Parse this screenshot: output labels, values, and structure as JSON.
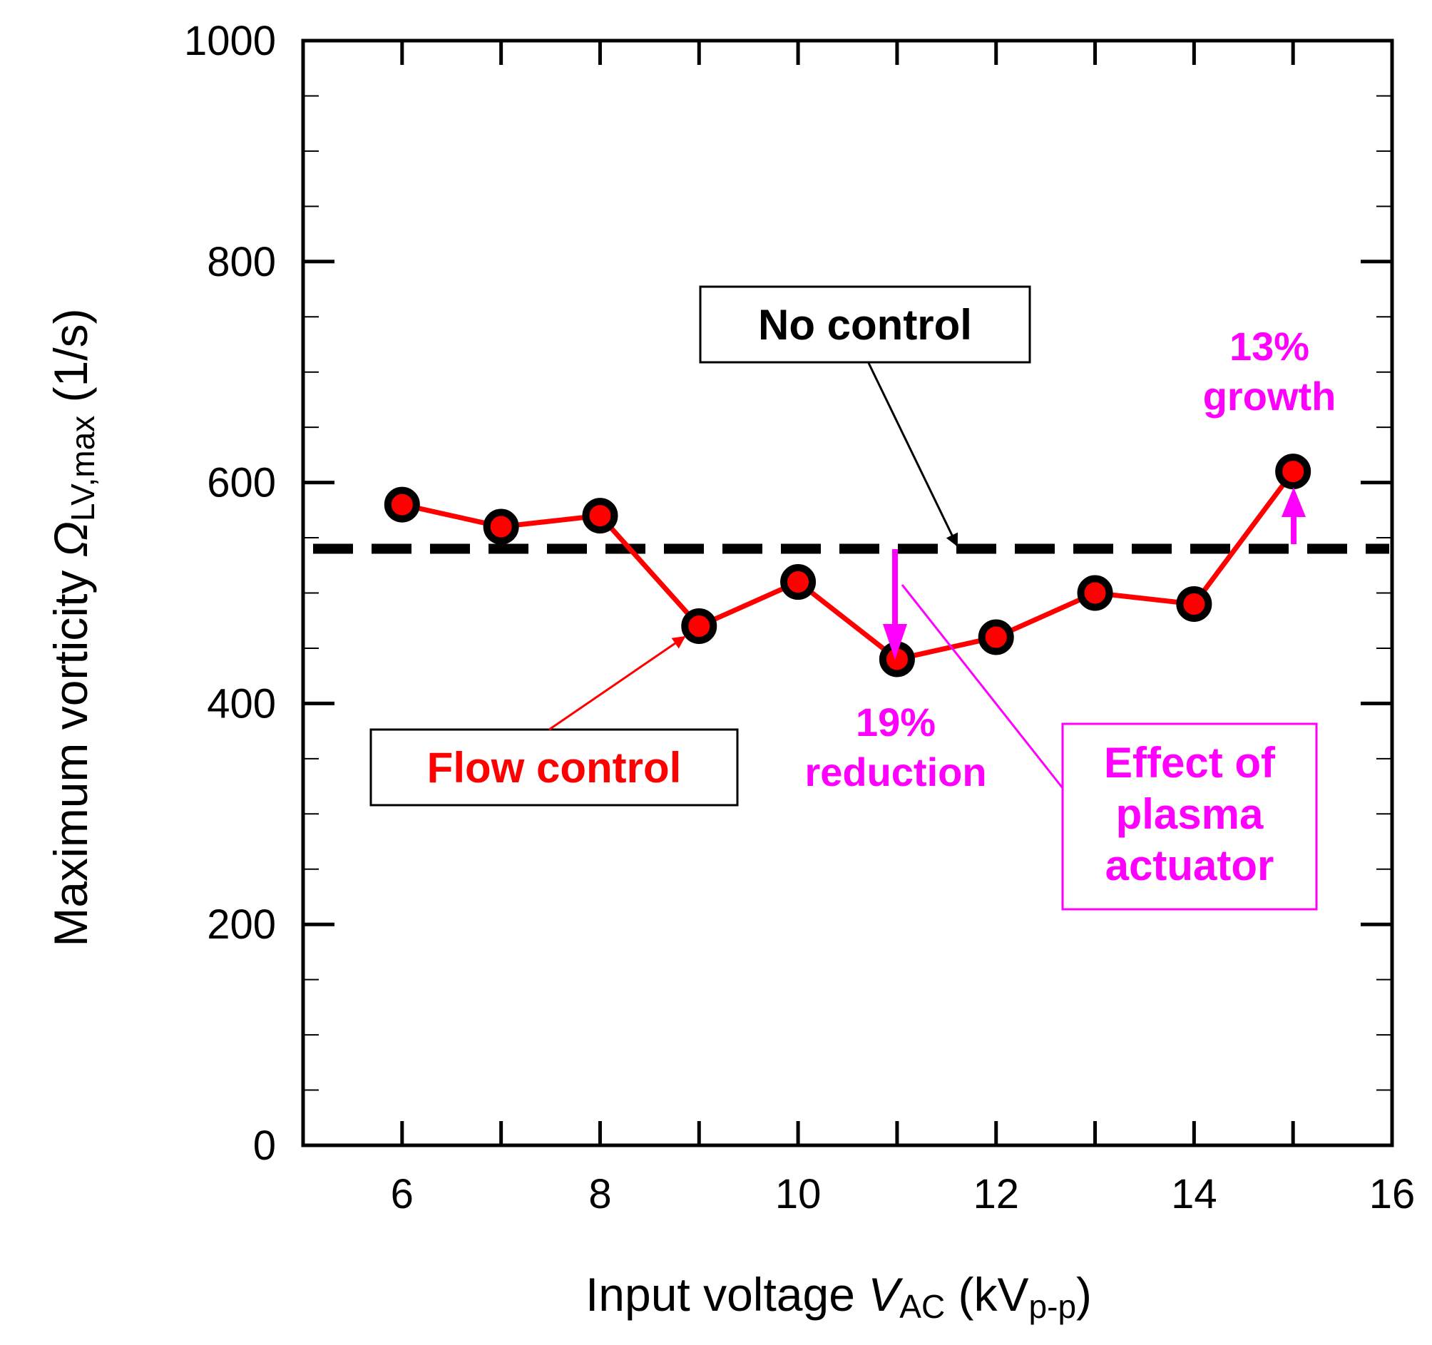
{
  "chart_data": {
    "type": "line",
    "x": [
      6,
      7,
      8,
      9,
      10,
      11,
      12,
      13,
      14,
      15
    ],
    "series": [
      {
        "name": "Flow control",
        "values": [
          580,
          560,
          570,
          470,
          510,
          440,
          460,
          500,
          490,
          610
        ],
        "color": "#ff0000"
      },
      {
        "name": "No control",
        "value": 540,
        "style": "dashed",
        "color": "#000000"
      }
    ],
    "xlim": [
      5,
      16
    ],
    "ylim": [
      0,
      1000
    ],
    "xticks": [
      6,
      8,
      10,
      12,
      14,
      16
    ],
    "yticks": [
      0,
      200,
      400,
      600,
      800,
      1000
    ],
    "xlabel": {
      "prefix": "Input voltage ",
      "var": "V",
      "sub": "AC",
      "post": " (kV",
      "unit_sub": "p-p",
      "close": ")"
    },
    "ylabel": {
      "prefix": "Maximum vorticity ",
      "var": "Ω",
      "sub": "LV,max",
      "post": " (1/s)"
    },
    "annotations": {
      "no_control_label": "No control",
      "flow_control_label": "Flow control",
      "reduction_pct": "19%",
      "reduction_word": "reduction",
      "growth_pct": "13%",
      "growth_word": "growth",
      "effect_lines": [
        "Effect of",
        "plasma",
        "actuator"
      ]
    },
    "colors": {
      "accent": "#ff00ff",
      "series": "#ff0000",
      "axis": "#000000"
    }
  }
}
